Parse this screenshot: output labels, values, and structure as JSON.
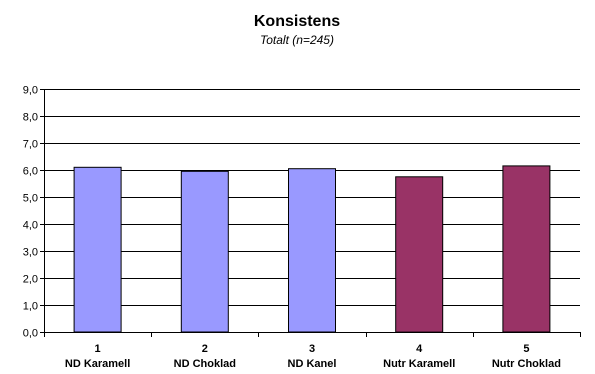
{
  "chart_data": {
    "type": "bar",
    "title": "Konsistens",
    "subtitle": "Totalt (n=245)",
    "xlabel": "",
    "ylabel": "",
    "ylim": [
      0,
      9
    ],
    "y_tick_step": 1,
    "y_tick_labels": [
      "0,0",
      "1,0",
      "2,0",
      "3,0",
      "4,0",
      "5,0",
      "6,0",
      "7,0",
      "8,0",
      "9,0"
    ],
    "grid": true,
    "legend": "none",
    "categories": [
      {
        "number": "1",
        "label": "ND Karamell"
      },
      {
        "number": "2",
        "label": "ND Choklad"
      },
      {
        "number": "3",
        "label": "ND Kanel"
      },
      {
        "number": "4",
        "label": "Nutr Karamell"
      },
      {
        "number": "5",
        "label": "Nutr Choklad"
      }
    ],
    "values": [
      6.1,
      5.95,
      6.05,
      5.75,
      6.15
    ],
    "bar_colors": [
      "#9999ff",
      "#9999ff",
      "#9999ff",
      "#993366",
      "#993366"
    ]
  }
}
